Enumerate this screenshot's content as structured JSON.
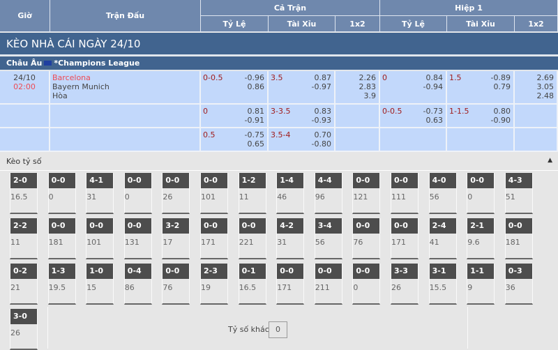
{
  "header": {
    "time": "Giờ",
    "match": "Trận Đấu",
    "full": "Cả Trận",
    "half": "Hiệp 1",
    "handicap": "Tỷ Lệ",
    "overunder": "Tài Xỉu",
    "x12": "1x2"
  },
  "title": "KÈO NHÀ CÁI NGÀY 24/10",
  "league": {
    "region": "Châu Âu",
    "name": "*Champions League"
  },
  "match": {
    "date": "24/10",
    "time": "02:00",
    "home": "Barcelona",
    "away": "Bayern Munich",
    "draw": "Hòa"
  },
  "rows": [
    {
      "ft_hdp": "0-0.5",
      "ft_hdp_odds": [
        "-0.96",
        "0.86"
      ],
      "ft_ou": "3.5",
      "ft_ou_odds": [
        "0.87",
        "-0.97"
      ],
      "ft_1x2": [
        "2.26",
        "2.83",
        "3.9"
      ],
      "h1_hdp": "0",
      "h1_hdp_odds": [
        "0.84",
        "-0.94"
      ],
      "h1_ou": "1.5",
      "h1_ou_odds": [
        "-0.89",
        "0.79"
      ],
      "h1_1x2": [
        "2.69",
        "3.05",
        "2.48"
      ]
    },
    {
      "ft_hdp": "0",
      "ft_hdp_odds": [
        "0.81",
        "-0.91"
      ],
      "ft_ou": "3-3.5",
      "ft_ou_odds": [
        "0.83",
        "-0.93"
      ],
      "h1_hdp": "0-0.5",
      "h1_hdp_odds": [
        "-0.73",
        "0.63"
      ],
      "h1_ou": "1-1.5",
      "h1_ou_odds": [
        "0.80",
        "-0.90"
      ]
    },
    {
      "ft_hdp": "0.5",
      "ft_hdp_odds": [
        "-0.75",
        "0.65"
      ],
      "ft_ou": "3.5-4",
      "ft_ou_odds": [
        "0.70",
        "-0.80"
      ]
    }
  ],
  "correct_score": {
    "label": "Kèo tỷ số",
    "collapse_icon": "caret-up-icon",
    "other_label": "Tỷ số khác",
    "other_value": "0",
    "scores": [
      [
        "2-0",
        "16.5"
      ],
      [
        "0-0",
        "0"
      ],
      [
        "4-1",
        "31"
      ],
      [
        "0-0",
        "0"
      ],
      [
        "0-0",
        "26"
      ],
      [
        "0-0",
        "101"
      ],
      [
        "1-2",
        "11"
      ],
      [
        "1-4",
        "46"
      ],
      [
        "4-4",
        "96"
      ],
      [
        "0-0",
        "121"
      ],
      [
        "0-0",
        "111"
      ],
      [
        "4-0",
        "56"
      ],
      [
        "0-0",
        "0"
      ],
      [
        "4-3",
        "51"
      ],
      [
        "2-2",
        "11"
      ],
      [
        "0-0",
        "181"
      ],
      [
        "0-0",
        "101"
      ],
      [
        "0-0",
        "131"
      ],
      [
        "3-2",
        "17"
      ],
      [
        "0-0",
        "171"
      ],
      [
        "0-0",
        "221"
      ],
      [
        "4-2",
        "31"
      ],
      [
        "3-4",
        "56"
      ],
      [
        "0-0",
        "76"
      ],
      [
        "0-0",
        "171"
      ],
      [
        "2-4",
        "41"
      ],
      [
        "2-1",
        "9.6"
      ],
      [
        "0-0",
        "181"
      ],
      [
        "0-2",
        "21"
      ],
      [
        "1-3",
        "19.5"
      ],
      [
        "1-0",
        "15"
      ],
      [
        "0-4",
        "86"
      ],
      [
        "0-0",
        "76"
      ],
      [
        "2-3",
        "19"
      ],
      [
        "0-1",
        "16.5"
      ],
      [
        "0-0",
        "171"
      ],
      [
        "0-0",
        "211"
      ],
      [
        "0-0",
        "0"
      ],
      [
        "3-3",
        "26"
      ],
      [
        "3-1",
        "15.5"
      ],
      [
        "1-1",
        "9"
      ],
      [
        "0-3",
        "36"
      ],
      [
        "3-0",
        "26"
      ]
    ]
  },
  "colors": {
    "header": "#6f88ad",
    "title_bar": "#41648f",
    "row": "#c2d8fb",
    "line_red": "#a01c1c",
    "home_team": "#ee4b55",
    "score_head": "#4d4d4d"
  }
}
